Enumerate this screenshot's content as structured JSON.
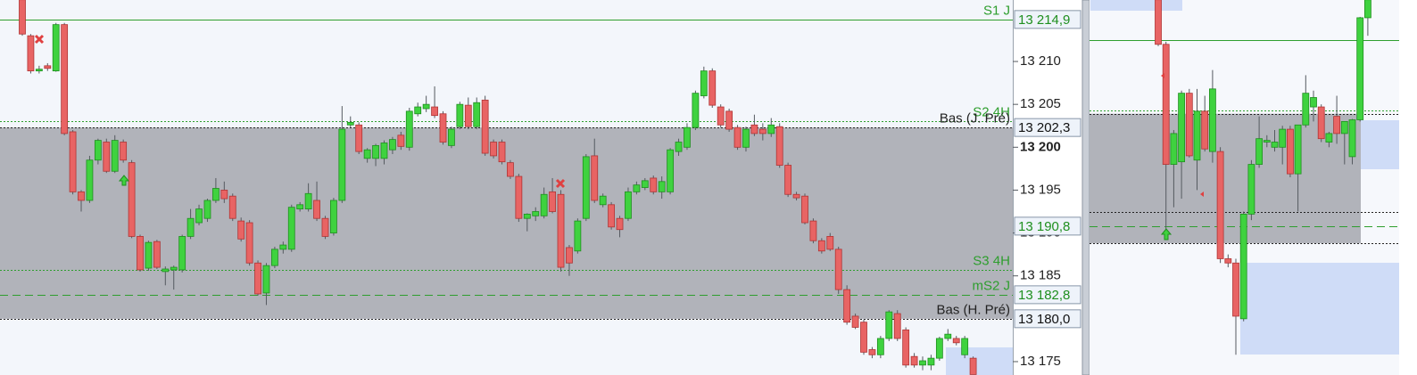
{
  "chart_data": [
    {
      "type": "candlestick",
      "ylim": [
        13173.44,
        13217.17
      ],
      "yticks": [
        {
          "value": 13175,
          "label": "13 175"
        },
        {
          "value": 13185,
          "label": "13 185"
        },
        {
          "value": 13190,
          "label": "13 190"
        },
        {
          "value": 13195,
          "label": "13 195"
        },
        {
          "value": 13200,
          "label": "13 200",
          "bold": true
        },
        {
          "value": 13205,
          "label": "13 205"
        },
        {
          "value": 13210,
          "label": "13 210"
        }
      ],
      "price_labels": [
        {
          "value": 13214.9,
          "label": "13 214,9",
          "color": "#1f8f1f"
        },
        {
          "value": 13202.3,
          "label": "13 202,3",
          "color": "#111111"
        },
        {
          "value": 13190.8,
          "label": "13 190,8",
          "color": "#1f8f1f"
        },
        {
          "value": 13182.8,
          "label": "13 182,8",
          "color": "#1f8f1f"
        },
        {
          "value": 13180.0,
          "label": "13 180,0",
          "color": "#111111"
        }
      ],
      "zone": {
        "low": 13180.0,
        "high": 13202.3,
        "color": "#b1b3ba"
      },
      "levels": [
        {
          "name": "S1 J",
          "value": 13214.9,
          "color": "#2e9e2e",
          "style": "solid"
        },
        {
          "name": "S2 4H",
          "value": 13203.0,
          "color": "#2e9e2e",
          "style": "dotted"
        },
        {
          "name": "Bas (J. Pré)",
          "value": 13202.3,
          "color": "#222222",
          "style": "dotted"
        },
        {
          "name": "S3 4H",
          "value": 13185.7,
          "color": "#2e9e2e",
          "style": "dotted"
        },
        {
          "name": "mS2 J",
          "value": 13182.8,
          "color": "#2e9e2e",
          "style": "dashed"
        },
        {
          "name": "Bas (H. Pré)",
          "value": 13180.0,
          "color": "#222222",
          "style": "dotted"
        }
      ],
      "up_color": "#3fd23f",
      "down_color": "#e86464",
      "candles": [
        [
          13217.2,
          13217.2,
          13213.0,
          13213.2
        ],
        [
          13213.0,
          13213.2,
          13208.6,
          13208.9
        ],
        [
          13208.9,
          13209.5,
          13208.6,
          13209.1
        ],
        [
          13209.5,
          13209.8,
          13208.9,
          13209.2
        ],
        [
          13208.9,
          13214.5,
          13208.8,
          13214.3
        ],
        [
          13214.3,
          13214.5,
          13201.4,
          13201.6
        ],
        [
          13201.8,
          13202.0,
          13194.5,
          13194.8
        ],
        [
          13194.8,
          13195.0,
          13192.5,
          13193.8
        ],
        [
          13193.8,
          13199.0,
          13193.5,
          13198.5
        ],
        [
          13198.5,
          13201.0,
          13198.0,
          13200.8
        ],
        [
          13200.6,
          13201.0,
          13197.0,
          13197.2
        ],
        [
          13197.2,
          13201.4,
          13197.0,
          13200.8
        ],
        [
          13200.6,
          13200.9,
          13198.2,
          13198.5
        ],
        [
          13198.2,
          13198.5,
          13189.4,
          13189.6
        ],
        [
          13189.6,
          13189.8,
          13185.5,
          13185.7
        ],
        [
          13185.9,
          13189.1,
          13185.6,
          13188.9
        ],
        [
          13189.0,
          13189.2,
          13185.8,
          13186.0
        ],
        [
          13185.5,
          13186.1,
          13183.9,
          13185.8
        ],
        [
          13185.7,
          13186.2,
          13183.4,
          13186.0
        ],
        [
          13185.7,
          13189.8,
          13185.4,
          13189.6
        ],
        [
          13189.6,
          13192.8,
          13189.3,
          13191.7
        ],
        [
          13191.2,
          13193.3,
          13190.9,
          13192.8
        ],
        [
          13191.7,
          13194.0,
          13191.3,
          13193.8
        ],
        [
          13193.8,
          13196.4,
          13193.5,
          13195.2
        ],
        [
          13195.0,
          13196.0,
          13193.5,
          13194.0
        ],
        [
          13194.3,
          13194.6,
          13191.4,
          13191.7
        ],
        [
          13191.4,
          13191.8,
          13189.0,
          13189.3
        ],
        [
          13191.2,
          13191.5,
          13186.2,
          13186.5
        ],
        [
          13186.5,
          13186.8,
          13182.7,
          13182.9
        ],
        [
          13183.0,
          13186.5,
          13181.6,
          13186.2
        ],
        [
          13186.2,
          13188.4,
          13185.9,
          13188.1
        ],
        [
          13188.1,
          13189.0,
          13187.6,
          13188.6
        ],
        [
          13188.1,
          13193.3,
          13187.8,
          13193.0
        ],
        [
          13192.8,
          13193.6,
          13192.5,
          13193.3
        ],
        [
          13192.8,
          13195.8,
          13192.5,
          13194.6
        ],
        [
          13193.8,
          13196.0,
          13191.4,
          13191.7
        ],
        [
          13191.7,
          13192.0,
          13189.3,
          13189.6
        ],
        [
          13190.0,
          13194.1,
          13189.7,
          13193.8
        ],
        [
          13193.8,
          13204.8,
          13193.5,
          13202.1
        ],
        [
          13202.6,
          13203.6,
          13202.3,
          13202.9
        ],
        [
          13202.6,
          13202.9,
          13199.2,
          13199.5
        ],
        [
          13198.7,
          13199.9,
          13198.2,
          13199.7
        ],
        [
          13198.7,
          13200.4,
          13197.8,
          13200.2
        ],
        [
          13198.7,
          13200.8,
          13198.0,
          13200.5
        ],
        [
          13199.7,
          13201.2,
          13199.2,
          13200.9
        ],
        [
          13201.4,
          13201.8,
          13199.7,
          13200.1
        ],
        [
          13200.0,
          13204.6,
          13199.6,
          13204.2
        ],
        [
          13203.9,
          13205.2,
          13203.6,
          13204.7
        ],
        [
          13204.5,
          13206.0,
          13204.1,
          13205.0
        ],
        [
          13204.7,
          13207.1,
          13203.4,
          13203.7
        ],
        [
          13203.9,
          13204.2,
          13200.3,
          13200.6
        ],
        [
          13200.2,
          13202.4,
          13199.9,
          13202.1
        ],
        [
          13202.4,
          13205.3,
          13202.1,
          13205.0
        ],
        [
          13204.9,
          13205.8,
          13202.1,
          13202.4
        ],
        [
          13202.4,
          13205.8,
          13202.1,
          13205.2
        ],
        [
          13205.5,
          13206.0,
          13199.0,
          13199.3
        ],
        [
          13200.6,
          13200.9,
          13198.7,
          13199.0
        ],
        [
          13200.6,
          13200.9,
          13198.0,
          13198.3
        ],
        [
          13198.2,
          13198.5,
          13196.3,
          13196.6
        ],
        [
          13196.6,
          13196.9,
          13191.3,
          13191.7
        ],
        [
          13191.7,
          13192.3,
          13190.2,
          13192.2
        ],
        [
          13192.0,
          13193.0,
          13191.4,
          13192.5
        ],
        [
          13192.0,
          13195.3,
          13191.7,
          13194.5
        ],
        [
          13194.8,
          13196.4,
          13192.3,
          13192.5
        ],
        [
          13194.5,
          13195.0,
          13185.5,
          13186.0
        ],
        [
          13188.3,
          13188.6,
          13185.0,
          13186.5
        ],
        [
          13187.9,
          13191.7,
          13187.6,
          13191.4
        ],
        [
          13191.7,
          13199.2,
          13191.4,
          13198.9
        ],
        [
          13199.0,
          13201.0,
          13193.5,
          13193.8
        ],
        [
          13193.3,
          13194.6,
          13193.0,
          13194.3
        ],
        [
          13193.3,
          13193.6,
          13190.4,
          13190.7
        ],
        [
          13191.7,
          13192.0,
          13189.5,
          13190.4
        ],
        [
          13191.7,
          13195.3,
          13191.4,
          13194.8
        ],
        [
          13194.8,
          13196.0,
          13194.5,
          13195.6
        ],
        [
          13195.3,
          13196.4,
          13195.0,
          13196.1
        ],
        [
          13196.4,
          13196.7,
          13194.5,
          13194.8
        ],
        [
          13194.8,
          13196.6,
          13194.0,
          13196.0
        ],
        [
          13194.8,
          13199.9,
          13194.5,
          13199.7
        ],
        [
          13199.5,
          13201.0,
          13199.0,
          13200.6
        ],
        [
          13200.0,
          13202.8,
          13199.7,
          13202.3
        ],
        [
          13202.3,
          13206.6,
          13202.0,
          13206.3
        ],
        [
          13206.0,
          13209.4,
          13205.7,
          13208.9
        ],
        [
          13208.9,
          13209.2,
          13204.6,
          13204.9
        ],
        [
          13204.7,
          13205.0,
          13202.3,
          13202.6
        ],
        [
          13204.2,
          13204.5,
          13201.8,
          13202.1
        ],
        [
          13202.3,
          13202.6,
          13199.7,
          13200.0
        ],
        [
          13200.0,
          13202.4,
          13199.5,
          13202.1
        ],
        [
          13202.6,
          13203.8,
          13201.3,
          13201.6
        ],
        [
          13202.1,
          13202.8,
          13200.8,
          13201.6
        ],
        [
          13201.6,
          13203.4,
          13201.2,
          13202.6
        ],
        [
          13202.4,
          13202.8,
          13197.6,
          13197.9
        ],
        [
          13197.9,
          13198.2,
          13194.2,
          13194.5
        ],
        [
          13194.5,
          13194.8,
          13193.8,
          13194.1
        ],
        [
          13194.3,
          13194.6,
          13191.0,
          13191.2
        ],
        [
          13191.4,
          13191.7,
          13188.8,
          13189.1
        ],
        [
          13189.1,
          13189.4,
          13187.6,
          13187.9
        ],
        [
          13189.6,
          13190.0,
          13187.9,
          13188.1
        ],
        [
          13188.1,
          13188.4,
          13182.9,
          13183.4
        ],
        [
          13183.4,
          13183.9,
          13179.3,
          13179.6
        ],
        [
          13180.3,
          13180.6,
          13178.8,
          13179.0
        ],
        [
          13179.6,
          13179.9,
          13175.8,
          13176.1
        ],
        [
          13176.4,
          13176.7,
          13175.4,
          13175.8
        ],
        [
          13175.8,
          13178.0,
          13175.4,
          13177.7
        ],
        [
          13177.7,
          13181.0,
          13177.4,
          13180.8
        ],
        [
          13180.6,
          13181.0,
          13177.4,
          13177.7
        ],
        [
          13178.7,
          13179.0,
          13174.3,
          13174.6
        ],
        [
          13175.6,
          13176.0,
          13174.3,
          13174.6
        ],
        [
          13174.6,
          13175.6,
          13174.0,
          13175.1
        ],
        [
          13174.6,
          13175.8,
          13174.0,
          13175.4
        ],
        [
          13175.4,
          13177.9,
          13175.1,
          13177.7
        ],
        [
          13177.7,
          13178.8,
          13177.4,
          13178.2
        ],
        [
          13177.7,
          13178.0,
          13176.9,
          13177.2
        ],
        [
          13175.8,
          13178.0,
          13175.4,
          13177.7
        ],
        [
          13175.4,
          13175.6,
          13173.5,
          13173.5
        ]
      ]
    },
    {
      "type": "candlestick",
      "ylim": [
        13173.44,
        13217.17
      ],
      "zone": {
        "low": 13188.8,
        "high": 13203.9,
        "color": "#b1b3ba"
      },
      "levels": [
        {
          "value": 13212.5,
          "color": "#2e9e2e",
          "style": "solid"
        },
        {
          "value": 13204.3,
          "color": "#2e9e2e",
          "style": "dotted"
        },
        {
          "value": 13203.9,
          "color": "#222222",
          "style": "dotted"
        },
        {
          "value": 13192.5,
          "color": "#222222",
          "style": "dotted"
        },
        {
          "value": 13190.8,
          "color": "#2e9e2e",
          "style": "dashed"
        },
        {
          "value": 13188.8,
          "color": "#222222",
          "style": "dotted"
        }
      ],
      "up_color": "#3fd23f",
      "down_color": "#e86464",
      "candles": [
        [
          13217.2,
          13217.2,
          13211.8,
          13212.0
        ],
        [
          13212.0,
          13212.3,
          13190.0,
          13198.0
        ],
        [
          13198.0,
          13202.0,
          13193.0,
          13201.6
        ],
        [
          13198.3,
          13206.6,
          13194.0,
          13206.3
        ],
        [
          13206.3,
          13206.8,
          13198.8,
          13199.0
        ],
        [
          13198.5,
          13206.8,
          13195.0,
          13204.2
        ],
        [
          13204.2,
          13206.0,
          13199.5,
          13199.8
        ],
        [
          13199.5,
          13209.0,
          13198.2,
          13206.8
        ],
        [
          13199.5,
          13200.0,
          13186.5,
          13187.0
        ],
        [
          13187.0,
          13187.5,
          13186.0,
          13186.5
        ],
        [
          13186.5,
          13187.0,
          13175.8,
          13180.3
        ],
        [
          13180.0,
          13192.5,
          13179.7,
          13192.2
        ],
        [
          13192.2,
          13198.5,
          13191.5,
          13198.0
        ],
        [
          13198.0,
          13203.6,
          13197.6,
          13201.0
        ],
        [
          13200.6,
          13201.4,
          13200.0,
          13200.8
        ],
        [
          13200.0,
          13202.0,
          13199.5,
          13200.6
        ],
        [
          13200.0,
          13202.5,
          13198.0,
          13202.1
        ],
        [
          13202.1,
          13202.5,
          13196.5,
          13196.9
        ],
        [
          13196.9,
          13202.6,
          13192.5,
          13202.6
        ],
        [
          13202.6,
          13208.4,
          13202.3,
          13206.3
        ],
        [
          13204.7,
          13206.6,
          13203.0,
          13205.8
        ],
        [
          13204.7,
          13205.0,
          13200.6,
          13201.0
        ],
        [
          13200.6,
          13201.8,
          13200.0,
          13201.6
        ],
        [
          13203.6,
          13206.0,
          13200.4,
          13201.6
        ],
        [
          13201.6,
          13203.0,
          13198.0,
          13203.0
        ],
        [
          13198.9,
          13203.3,
          13198.0,
          13203.2
        ],
        [
          13203.2,
          13215.2,
          13203.0,
          13215.1
        ],
        [
          13215.1,
          13217.2,
          13213.0,
          13217.2
        ]
      ]
    }
  ]
}
